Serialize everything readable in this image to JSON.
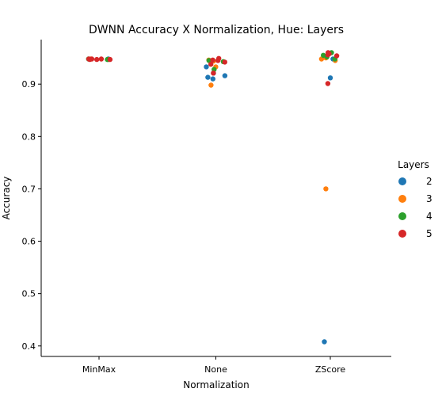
{
  "chart_data": {
    "type": "scatter",
    "title": "DWNN Accuracy X Normalization, Hue: Layers",
    "xlabel": "Normalization",
    "ylabel": "Accuracy",
    "categories": [
      "MinMax",
      "None",
      "ZScore"
    ],
    "ylim": [
      0.38,
      0.985
    ],
    "yticks": [
      0.4,
      0.5,
      0.6,
      0.7,
      0.8,
      0.9
    ],
    "grid": false,
    "legend": {
      "title": "Layers",
      "placement": "right",
      "entries": [
        {
          "label": "2",
          "color": "#1f77b4"
        },
        {
          "label": "3",
          "color": "#ff7f0e"
        },
        {
          "label": "4",
          "color": "#2ca02c"
        },
        {
          "label": "5",
          "color": "#d62728"
        }
      ]
    },
    "series": [
      {
        "layers": "2",
        "color": "#1f77b4",
        "points": [
          {
            "category": "MinMax",
            "y": 0.947
          },
          {
            "category": "MinMax",
            "y": 0.948
          },
          {
            "category": "None",
            "y": 0.933
          },
          {
            "category": "None",
            "y": 0.921
          },
          {
            "category": "None",
            "y": 0.916
          },
          {
            "category": "None",
            "y": 0.913
          },
          {
            "category": "None",
            "y": 0.91
          },
          {
            "category": "ZScore",
            "y": 0.912
          },
          {
            "category": "ZScore",
            "y": 0.948
          },
          {
            "category": "ZScore",
            "y": 0.408
          }
        ]
      },
      {
        "layers": "3",
        "color": "#ff7f0e",
        "points": [
          {
            "category": "MinMax",
            "y": 0.948
          },
          {
            "category": "MinMax",
            "y": 0.947
          },
          {
            "category": "None",
            "y": 0.944
          },
          {
            "category": "None",
            "y": 0.946
          },
          {
            "category": "None",
            "y": 0.933
          },
          {
            "category": "None",
            "y": 0.898
          },
          {
            "category": "ZScore",
            "y": 0.948
          },
          {
            "category": "ZScore",
            "y": 0.945
          },
          {
            "category": "ZScore",
            "y": 0.95
          },
          {
            "category": "ZScore",
            "y": 0.7
          }
        ]
      },
      {
        "layers": "4",
        "color": "#2ca02c",
        "points": [
          {
            "category": "MinMax",
            "y": 0.948
          },
          {
            "category": "MinMax",
            "y": 0.947
          },
          {
            "category": "None",
            "y": 0.945
          },
          {
            "category": "None",
            "y": 0.943
          },
          {
            "category": "None",
            "y": 0.928
          },
          {
            "category": "ZScore",
            "y": 0.955
          },
          {
            "category": "ZScore",
            "y": 0.96
          },
          {
            "category": "ZScore",
            "y": 0.952
          },
          {
            "category": "ZScore",
            "y": 0.948
          }
        ]
      },
      {
        "layers": "5",
        "color": "#d62728",
        "points": [
          {
            "category": "MinMax",
            "y": 0.948
          },
          {
            "category": "MinMax",
            "y": 0.947
          },
          {
            "category": "MinMax",
            "y": 0.948
          },
          {
            "category": "MinMax",
            "y": 0.947
          },
          {
            "category": "MinMax",
            "y": 0.948
          },
          {
            "category": "MinMax",
            "y": 0.947
          },
          {
            "category": "None",
            "y": 0.946
          },
          {
            "category": "None",
            "y": 0.949
          },
          {
            "category": "None",
            "y": 0.945
          },
          {
            "category": "None",
            "y": 0.942
          },
          {
            "category": "None",
            "y": 0.938
          },
          {
            "category": "None",
            "y": 0.921
          },
          {
            "category": "ZScore",
            "y": 0.958
          },
          {
            "category": "ZScore",
            "y": 0.956
          },
          {
            "category": "ZScore",
            "y": 0.954
          },
          {
            "category": "ZScore",
            "y": 0.96
          },
          {
            "category": "ZScore",
            "y": 0.901
          }
        ]
      }
    ]
  }
}
